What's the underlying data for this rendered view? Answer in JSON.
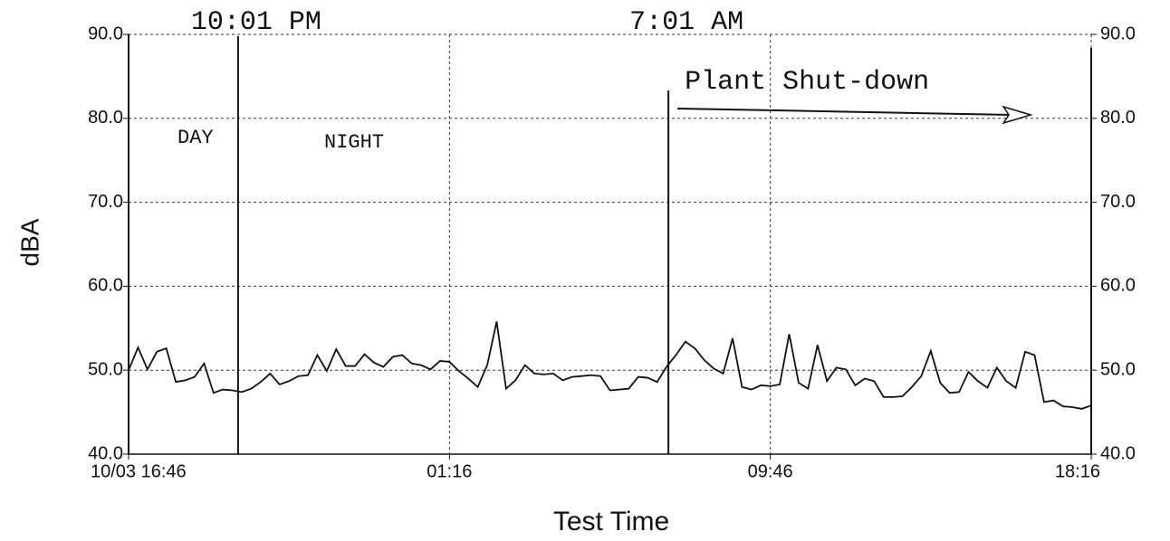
{
  "chart_data": {
    "type": "line",
    "y_label": "dBA",
    "x_label": "Test Time",
    "x": [
      0,
      0.25,
      0.5,
      0.75,
      1,
      1.25,
      1.5,
      1.75,
      2,
      2.25,
      2.5,
      2.75,
      3,
      3.25,
      3.5,
      3.75,
      4,
      4.25,
      4.5,
      4.75,
      5,
      5.25,
      5.5,
      5.75,
      6,
      6.25,
      6.5,
      6.75,
      7,
      7.25,
      7.5,
      7.75,
      8,
      8.25,
      8.5,
      8.75,
      9,
      9.25,
      9.5,
      9.75,
      10,
      10.25,
      10.5,
      10.75,
      11,
      11.25,
      11.5,
      11.75,
      12,
      12.25,
      12.5,
      12.75,
      13,
      13.25,
      13.5,
      13.75,
      14,
      14.25,
      14.5,
      14.75,
      15,
      15.25,
      15.5,
      15.75,
      16,
      16.25,
      16.5,
      16.75,
      17,
      17.25,
      17.5,
      17.75,
      18,
      18.25,
      18.5,
      18.75,
      19,
      19.25,
      19.5,
      19.75,
      20,
      20.25,
      20.5,
      20.75,
      21,
      21.25,
      21.5,
      21.75,
      22,
      22.25,
      22.5,
      22.75,
      23,
      23.25,
      23.5,
      23.75,
      24,
      24.25,
      24.5,
      24.75,
      25,
      25.25,
      25.5
    ],
    "series": [
      {
        "color": "#111111",
        "values": [
          50.0,
          52.7,
          50.1,
          52.2,
          52.6,
          48.6,
          48.8,
          49.2,
          50.8,
          47.3,
          47.7,
          47.6,
          47.4,
          47.8,
          48.6,
          49.6,
          48.3,
          48.7,
          49.3,
          49.4,
          51.8,
          49.9,
          52.5,
          50.5,
          50.5,
          51.9,
          50.9,
          50.4,
          51.6,
          51.8,
          50.8,
          50.6,
          50.1,
          51.1,
          51.0,
          49.9,
          49.0,
          48.0,
          50.6,
          55.8,
          47.8,
          48.8,
          50.6,
          49.6,
          49.5,
          49.6,
          48.8,
          49.2,
          49.3,
          49.4,
          49.3,
          47.6,
          47.7,
          47.8,
          49.2,
          49.1,
          48.6,
          50.4,
          51.8,
          53.4,
          52.6,
          51.2,
          50.2,
          49.6,
          53.8,
          48.0,
          47.7,
          48.2,
          48.1,
          48.3,
          54.3,
          48.5,
          47.8,
          53.0,
          48.7,
          50.3,
          50.1,
          48.2,
          49.0,
          48.7,
          46.8,
          46.8,
          46.9,
          48.0,
          49.3,
          52.3,
          48.5,
          47.3,
          47.4,
          49.8,
          48.7,
          47.9,
          50.3,
          48.7,
          47.9,
          52.2,
          51.8,
          46.2,
          46.4,
          45.7,
          45.6,
          45.4,
          45.8
        ]
      }
    ],
    "xlim": [
      0,
      25.5
    ],
    "xticks": [
      {
        "value": 0,
        "label": "10/03 16:46"
      },
      {
        "value": 8.5,
        "label": "01:16"
      },
      {
        "value": 17,
        "label": "09:46"
      },
      {
        "value": 25.5,
        "label": "18:16"
      }
    ],
    "ylim": [
      40,
      90
    ],
    "yticks": [
      {
        "value": 40,
        "label": "40.0"
      },
      {
        "value": 50,
        "label": "50.0"
      },
      {
        "value": 60,
        "label": "60.0"
      },
      {
        "value": 70,
        "label": "70.0"
      },
      {
        "value": 80,
        "label": "80.0"
      },
      {
        "value": 90,
        "label": "90.0"
      }
    ],
    "y2lim": [
      40,
      90
    ],
    "y2ticks": [
      {
        "value": 40,
        "label": "40.0"
      },
      {
        "value": 50,
        "label": "50.0"
      },
      {
        "value": 60,
        "label": "60.0"
      },
      {
        "value": 70,
        "label": "70.0"
      },
      {
        "value": 80,
        "label": "80.0"
      },
      {
        "value": 90,
        "label": "90.0"
      }
    ],
    "grid": true,
    "annotations": [
      {
        "label": "10:01 PM",
        "x": 2.9
      },
      {
        "label": "7:01 AM",
        "x": 14.3
      }
    ],
    "region_labels": [
      "DAY",
      "NIGHT"
    ],
    "event_label": "Plant Shut-down"
  }
}
